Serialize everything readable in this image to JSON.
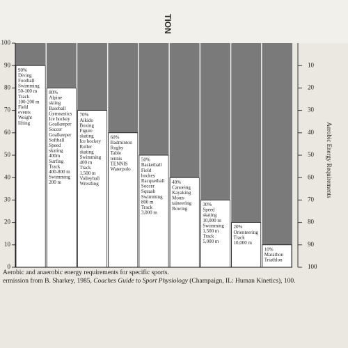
{
  "chart_data": {
    "type": "bar",
    "header": "TION",
    "y2_title": "Aerobic Energy Requirements",
    "caption": "Aerobic and anaerobic energy requirements for specific sports.",
    "source_before": "ermission from B. Sharkey, 1985,",
    "source_title": "Coaches Guide to Sport Physiology",
    "source_after": "(Champaign, IL: Human Kinetics), 100.",
    "categories": [
      [
        "Diving",
        "Football",
        "Swimming",
        "50-100 m",
        "Track",
        "100-200 m",
        "Field",
        "events",
        "Weight",
        "lifting"
      ],
      [
        "Alpine",
        "skiing",
        "Baseball",
        "Gymnastics",
        "Ice hockey",
        "Goalkeeper",
        "Soccer",
        "Goalkeeper",
        "Softball",
        "Speed",
        "skating",
        "400m",
        "Surfing",
        "Track",
        "400-800 m",
        "Swimming",
        "200 m"
      ],
      [
        "Aikido",
        "Boxing",
        "Figure",
        "skating",
        "Ice hockey",
        "Roller",
        "skating",
        "Swimming",
        "400 m",
        "Track",
        "1,500 m",
        "Volleyball",
        "Wrestling"
      ],
      [
        "Badminton",
        "Rugby",
        "Table",
        "tennis",
        "TENNIS",
        "Waterpolo"
      ],
      [
        "Basketball",
        "Field",
        "hockey",
        "Racquetball",
        "Soccer",
        "Squash",
        "Swimming",
        "800 m",
        "Track",
        "3,000 m"
      ],
      [
        "Canoeing",
        "Kayaking",
        "Moun-",
        "taineering",
        "Rowing"
      ],
      [
        "Speed",
        "skating",
        "10,000 m",
        "Swimming",
        "1,500 m",
        "Track",
        "5,000 m"
      ],
      [
        "Orienteering",
        "Track",
        "10,000 m"
      ],
      [
        "Marathon",
        "Triathlon"
      ]
    ],
    "values": [
      90,
      80,
      70,
      60,
      50,
      40,
      30,
      20,
      10
    ],
    "value_labels": [
      "90%",
      "80%",
      "70%",
      "60%",
      "50%",
      "40%",
      "30%",
      "20%",
      "10%"
    ],
    "color": "#ffffff",
    "background_color": "#7a7a7a",
    "ylim": [
      0,
      100
    ],
    "yticks": [
      0,
      10,
      20,
      30,
      40,
      50,
      60,
      70,
      80,
      90,
      100
    ],
    "y2lim": [
      100,
      0
    ],
    "y2ticks": [
      10,
      20,
      30,
      40,
      50,
      60,
      70,
      80,
      90,
      100
    ]
  }
}
